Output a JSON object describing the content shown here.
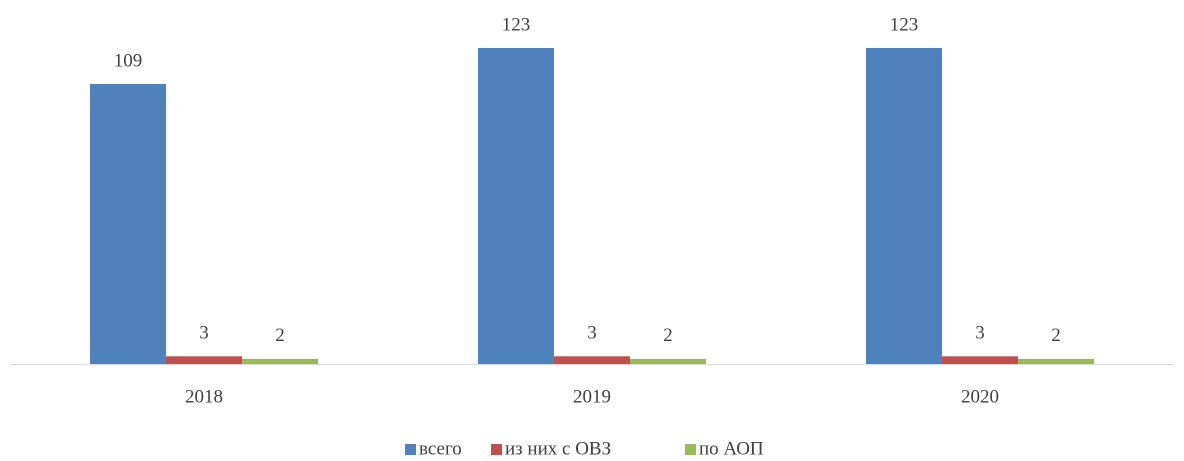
{
  "chart_data": {
    "type": "bar",
    "categories": [
      "2018",
      "2019",
      "2020"
    ],
    "series": [
      {
        "name": "всего",
        "color": "#4f81bd",
        "values": [
          109,
          123,
          123
        ]
      },
      {
        "name": "из них с ОВЗ",
        "color": "#c0504d",
        "values": [
          3,
          3,
          3
        ]
      },
      {
        "name": "по АОП",
        "color": "#9bbb59",
        "values": [
          2,
          2,
          2
        ]
      }
    ],
    "legend": "bottom"
  }
}
